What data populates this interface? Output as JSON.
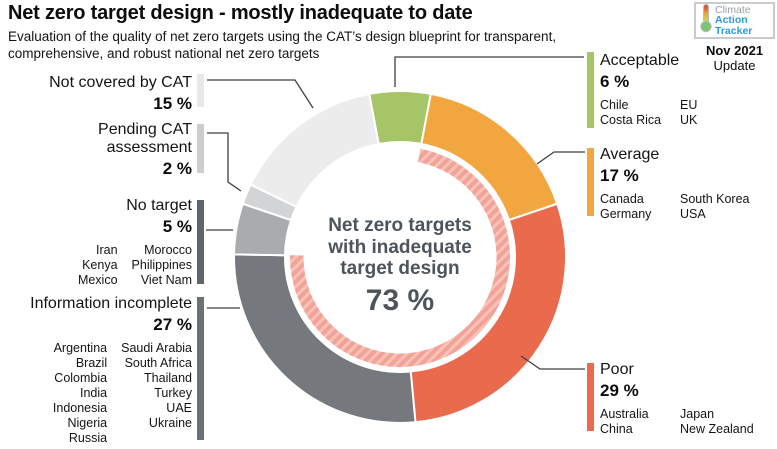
{
  "header": {
    "title": "Net zero target design - mostly inadequate to date",
    "subtitle": "Evaluation of the quality of net zero targets using the CAT’s design blueprint for transparent,\ncomprehensive, and robust national net zero targets"
  },
  "logo": {
    "word1": "Climate",
    "word2": "Action",
    "word3": "Tracker",
    "date": "Nov 2021",
    "update": "Update",
    "blue": "#2d9bd5",
    "gray": "#98a0a4"
  },
  "chart_data": {
    "type": "pie",
    "subtype": "donut",
    "title": "Net zero target design - mostly inadequate to date",
    "units": "% of assessed countries",
    "legend_position": "callouts-around-donut",
    "center": {
      "lines": "Net zero targets\nwith inadequate\ntarget design",
      "value": 73,
      "value_label": "73 %",
      "text_color": "#4d545b"
    },
    "segments": [
      {
        "label": "Acceptable",
        "value": 6,
        "pct_label": "6 %",
        "color": "#a6c566",
        "bar_color": "#a6c566",
        "countries_col1": [
          "Chile",
          "Costa Rica"
        ],
        "countries_col2": [
          "EU",
          "UK"
        ]
      },
      {
        "label": "Average",
        "value": 17,
        "pct_label": "17 %",
        "color": "#f2a640",
        "bar_color": "#f2a640",
        "countries_col1": [
          "Canada",
          "Germany"
        ],
        "countries_col2": [
          "South Korea",
          "USA"
        ]
      },
      {
        "label": "Poor",
        "value": 29,
        "pct_label": "29 %",
        "color": "#ea6a4d",
        "bar_color": "#ea6a4d",
        "countries_col1": [
          "Australia",
          "China"
        ],
        "countries_col2": [
          "Japan",
          "New Zealand"
        ]
      },
      {
        "label": "Information incomplete",
        "value": 27,
        "pct_label": "27 %",
        "color": "#75797d",
        "bar_color": "#6c7174",
        "countries_col1": [
          "Argentina",
          "Brazil",
          "Colombia",
          "India",
          "Indonesia",
          "Nigeria",
          "Russia"
        ],
        "countries_col2": [
          "Saudi Arabia",
          "South Africa",
          "Thailand",
          "Turkey",
          "UAE",
          "Ukraine"
        ]
      },
      {
        "label": "No target",
        "value": 5,
        "pct_label": "5 %",
        "color": "#a9acae",
        "bar_color": "#61666a",
        "countries_col1": [
          "Iran",
          "Kenya",
          "Mexico"
        ],
        "countries_col2": [
          "Morocco",
          "Philippines",
          "Viet Nam"
        ]
      },
      {
        "label": "Pending CAT assessment",
        "display_label": "Pending CAT\nassessment",
        "value": 2,
        "pct_label": "2 %",
        "color": "#d2d4d5",
        "bar_color": "#cbcdce"
      },
      {
        "label": "Not covered by CAT",
        "value": 15,
        "pct_label": "15 %",
        "color": "#ececec",
        "bar_color": "#e7e8e8"
      }
    ],
    "inner_highlight": {
      "covers": [
        "Average",
        "Poor",
        "Information incomplete"
      ],
      "value": 73,
      "color": "#f2a296",
      "stripe_color": "#f7c3b9"
    }
  }
}
